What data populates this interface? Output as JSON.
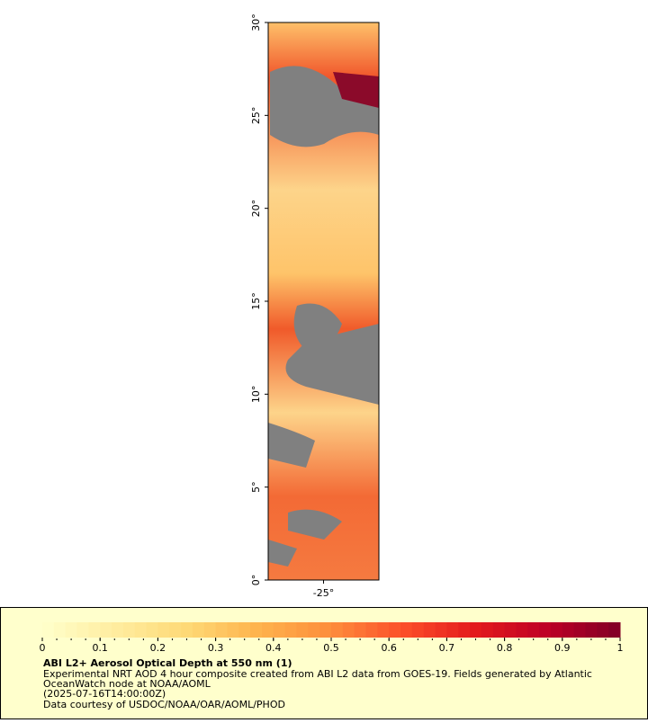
{
  "chart_data": {
    "type": "map",
    "title": "ABI L2+ Aerosol Optical Depth at 550 nm (1)",
    "description": [
      "Experimental NRT AOD 4 hour composite created from ABI L2 data from GOES-19. Fields generated by Atlantic",
      "OceanWatch node at NOAA/AOML",
      "(2025-07-16T14:00:00Z)",
      "Data courtesy of USDOC/NOAA/OAR/AOML/PHOD"
    ],
    "xlim": [
      -28,
      -22
    ],
    "xticks": [
      {
        "value": -25,
        "label": "-25°"
      }
    ],
    "ylim": [
      0,
      30
    ],
    "yticks": [
      {
        "value": 0,
        "label": "0°"
      },
      {
        "value": 5,
        "label": "5°"
      },
      {
        "value": 10,
        "label": "10°"
      },
      {
        "value": 15,
        "label": "15°"
      },
      {
        "value": 20,
        "label": "20°"
      },
      {
        "value": 25,
        "label": "25°"
      },
      {
        "value": 30,
        "label": "30°"
      }
    ],
    "colorbar": {
      "range": [
        0,
        1
      ],
      "ticks": [
        0,
        0.1,
        0.2,
        0.3,
        0.4,
        0.5,
        0.6,
        0.7,
        0.8,
        0.9,
        1
      ],
      "colors": [
        "#ffffcc",
        "#ffeda0",
        "#fed976",
        "#feb24c",
        "#fd8d3c",
        "#fc4e2a",
        "#e31a1c",
        "#bd0026",
        "#800026"
      ]
    },
    "nodata_color": "#808080"
  }
}
